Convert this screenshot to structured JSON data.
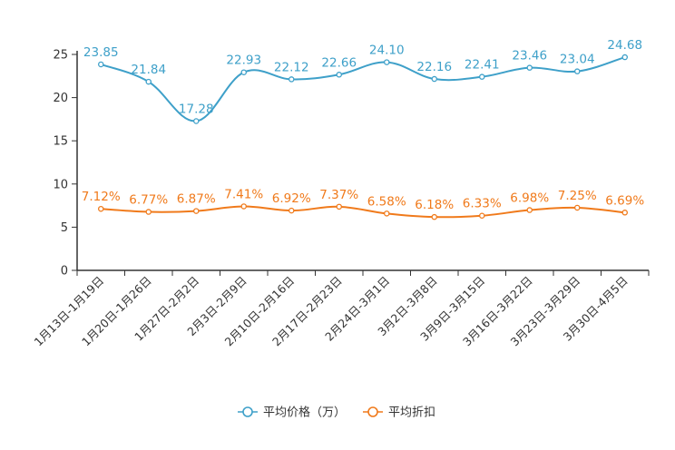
{
  "chart_data": {
    "type": "line",
    "title": "",
    "xlabel": "",
    "ylabel": "",
    "ylim": [
      0,
      25
    ],
    "yticks": [
      0,
      5,
      10,
      15,
      20,
      25
    ],
    "ytick_labels": [
      "0",
      "5",
      "10",
      "15",
      "20",
      "25"
    ],
    "grid": false,
    "legend_position": "bottom-center",
    "categories": [
      "1月13日-1月19日",
      "1月20日-1月26日",
      "1月27日-2月2日",
      "2月3日-2月9日",
      "2月10日-2月16日",
      "2月17日-2月23日",
      "2月24日-3月1日",
      "3月2日-3月8日",
      "3月9日-3月15日",
      "3月16日-3月22日",
      "3月23日-3月29日",
      "3月30日-4月5日"
    ],
    "series": [
      {
        "name": "平均价格（万）",
        "color": "#3ea0c9",
        "values": [
          23.85,
          21.84,
          17.28,
          22.93,
          22.12,
          22.66,
          24.1,
          22.16,
          22.41,
          23.46,
          23.04,
          24.68
        ],
        "labels": [
          "23.85",
          "21.84",
          "17.28",
          "22.93",
          "22.12",
          "22.66",
          "24.10",
          "22.16",
          "22.41",
          "23.46",
          "23.04",
          "24.68"
        ]
      },
      {
        "name": "平均折扣",
        "color": "#f07a1b",
        "values": [
          7.12,
          6.77,
          6.87,
          7.41,
          6.92,
          7.37,
          6.58,
          6.18,
          6.33,
          6.98,
          7.25,
          6.69
        ],
        "labels": [
          "7.12%",
          "6.77%",
          "6.87%",
          "7.41%",
          "6.92%",
          "7.37%",
          "6.58%",
          "6.18%",
          "6.33%",
          "6.98%",
          "7.25%",
          "6.69%"
        ]
      }
    ]
  }
}
